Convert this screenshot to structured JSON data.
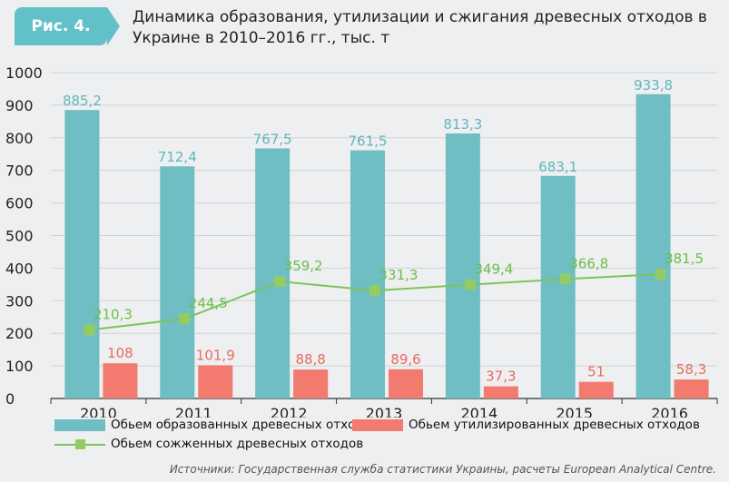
{
  "header": {
    "badge": "Рис. 4.",
    "title": "Динамика образования, утилизации и сжигания древесных отходов в Украине в 2010–2016 гг., тыс. т"
  },
  "colors": {
    "formed": "#6fbec4",
    "utilized": "#f27a6e",
    "burned": "#93cc63",
    "burned_label": "#6cbf47",
    "formed_label": "#5fb6be",
    "utilized_label": "#ea6a5e",
    "badge": "#62c0c9"
  },
  "chart_data": {
    "type": "bar",
    "categories": [
      "2010",
      "2011",
      "2012",
      "2013",
      "2014",
      "2015",
      "2016"
    ],
    "ylim": [
      0,
      1000
    ],
    "yticks": [
      "0",
      "100",
      "200",
      "300",
      "400",
      "500",
      "600",
      "700",
      "800",
      "900",
      "1000"
    ],
    "grid": true,
    "legend_position": "bottom",
    "series": [
      {
        "name": "Обьем образованных древесных отходов",
        "kind": "bar",
        "values": [
          885.2,
          712.4,
          767.5,
          761.5,
          813.3,
          683.1,
          933.8
        ],
        "labels": [
          "885,2",
          "712,4",
          "767,5",
          "761,5",
          "813,3",
          "683,1",
          "933,8"
        ]
      },
      {
        "name": "Обьем утилизированных древесных отходов",
        "kind": "bar",
        "values": [
          108,
          101.9,
          88.8,
          89.6,
          37.3,
          51,
          58.3
        ],
        "labels": [
          "108",
          "101,9",
          "88,8",
          "89,6",
          "37,3",
          "51",
          "58,3"
        ]
      },
      {
        "name": "Обьем сожженных древесных отходов",
        "kind": "line",
        "values": [
          210.3,
          244.5,
          359.2,
          331.3,
          349.4,
          366.8,
          381.5
        ],
        "labels": [
          "210,3",
          "244,5",
          "359,2",
          "331,3",
          "349,4",
          "366,8",
          "381,5"
        ]
      }
    ]
  },
  "legend": {
    "formed": "Обьем образованных древесных отходов",
    "utilized": "Обьем утилизированных древесных отходов",
    "burned": "Обьем сожженных древесных отходов"
  },
  "source": "Источники: Государственная служба статистики  Украины, расчеты European Analytical Centre."
}
